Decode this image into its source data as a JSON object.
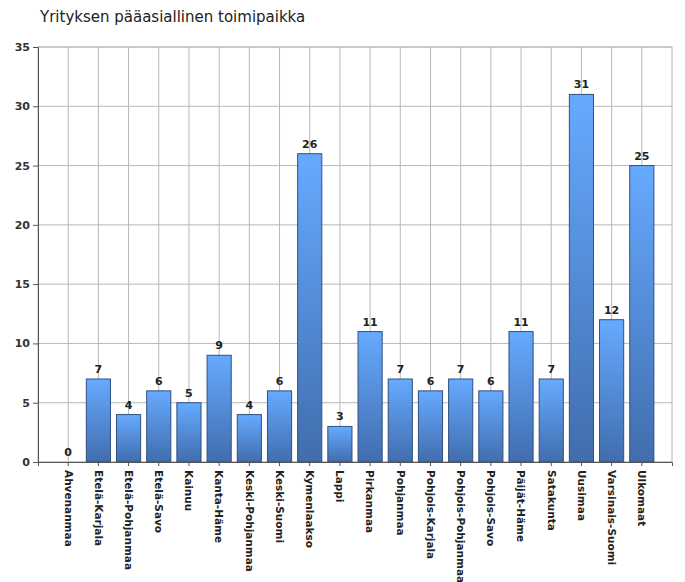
{
  "chart_data": {
    "type": "bar",
    "title": "Yrityksen pääasiallinen toimipaikka",
    "categories": [
      "Ahvenanmaa",
      "Etelä-Karjala",
      "Etelä-Pohjanmaa",
      "Etelä-Savo",
      "Kainuu",
      "Kanta-Häme",
      "Keski-Pohjanmaa",
      "Keski-Suomi",
      "Kymenlaakso",
      "Lappi",
      "Pirkanmaa",
      "Pohjanmaa",
      "Pohjois-Karjala",
      "Pohjois-Pohjanmaa",
      "Pohjois-Savo",
      "Päijät-Häme",
      "Satakunta",
      "Uusimaa",
      "Varsinais-Suomi",
      "Ulkomaat"
    ],
    "values": [
      0,
      7,
      4,
      6,
      5,
      9,
      4,
      6,
      26,
      3,
      11,
      7,
      6,
      7,
      6,
      11,
      7,
      31,
      12,
      25
    ],
    "color": "#4a7bc4",
    "ylim": [
      0,
      35
    ],
    "yticks": [
      0,
      5,
      10,
      15,
      20,
      25,
      30,
      35
    ],
    "grid": true,
    "data_labels": true
  }
}
